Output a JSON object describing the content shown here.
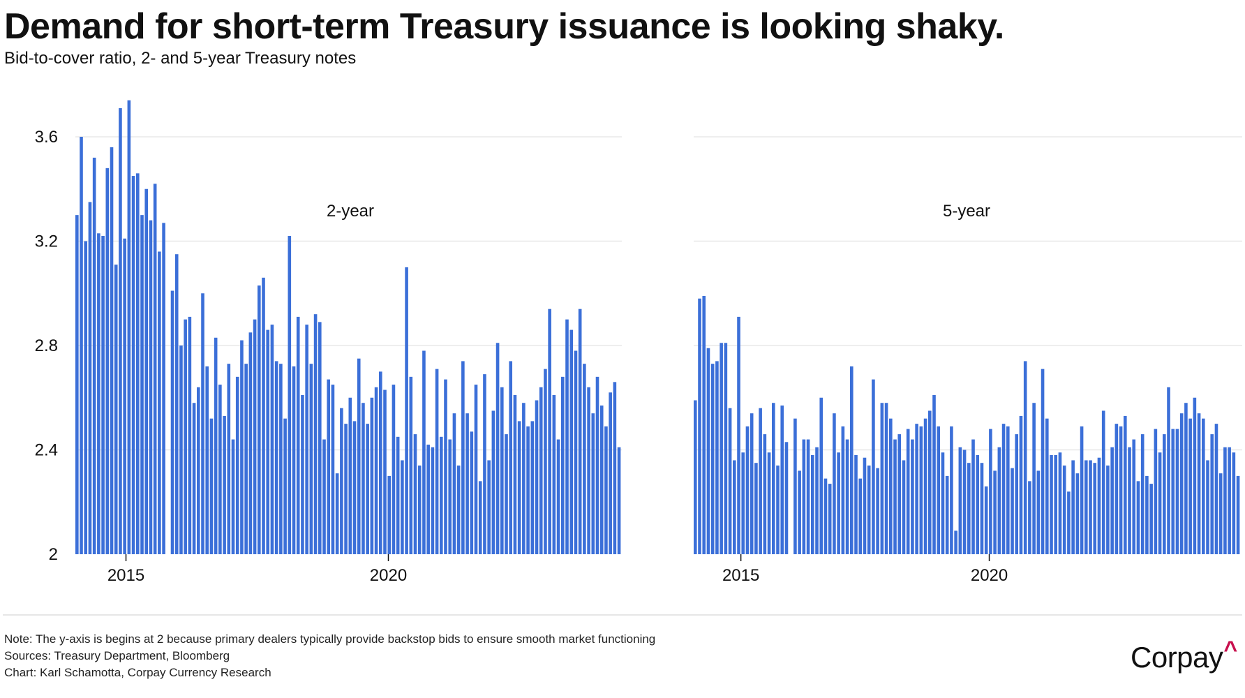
{
  "header": {
    "title": "Demand for short-term Treasury issuance is looking shaky.",
    "subtitle": "Bid-to-cover ratio, 2- and 5-year Treasury notes"
  },
  "footer": {
    "note": "Note: The y-axis is begins at 2 because primary dealers typically provide backstop bids to ensure smooth market functioning",
    "sources": "Sources: Treasury Department, Bloomberg",
    "credit": "Chart: Karl Schamotta, Corpay Currency Research"
  },
  "logo": {
    "text": "Corpay",
    "mark": "^",
    "mark_color": "#c8104e"
  },
  "colors": {
    "bar": "#3b6fd8",
    "grid": "#e8e8e8"
  },
  "chart_data": [
    {
      "type": "bar",
      "title": "2-year",
      "xlabel": "",
      "ylabel": "",
      "ylim": [
        2,
        3.75
      ],
      "yticks": [
        2,
        2.4,
        2.8,
        3.2,
        3.6
      ],
      "ytick_labels": [
        "2",
        "2.4",
        "2.8",
        "3.2",
        "3.6"
      ],
      "xticks": [
        {
          "label": "2015",
          "at_index": 11.3
        },
        {
          "label": "2020",
          "at_index": 71.8
        }
      ],
      "gap_after_index": 20,
      "grid": true,
      "values": [
        3.3,
        3.6,
        3.2,
        3.35,
        3.52,
        3.23,
        3.22,
        3.48,
        3.56,
        3.11,
        3.71,
        3.21,
        3.74,
        3.45,
        3.46,
        3.3,
        3.4,
        3.28,
        3.42,
        3.16,
        3.27,
        3.01,
        3.15,
        2.8,
        2.9,
        2.91,
        2.58,
        2.64,
        3.0,
        2.72,
        2.52,
        2.83,
        2.65,
        2.53,
        2.73,
        2.44,
        2.68,
        2.82,
        2.73,
        2.85,
        2.9,
        3.03,
        3.06,
        2.86,
        2.88,
        2.74,
        2.73,
        2.52,
        3.22,
        2.72,
        2.91,
        2.61,
        2.88,
        2.73,
        2.92,
        2.89,
        2.44,
        2.67,
        2.65,
        2.31,
        2.56,
        2.5,
        2.6,
        2.51,
        2.75,
        2.58,
        2.5,
        2.6,
        2.64,
        2.7,
        2.63,
        2.3,
        2.65,
        2.45,
        2.36,
        3.1,
        2.68,
        2.46,
        2.34,
        2.78,
        2.42,
        2.41,
        2.71,
        2.45,
        2.67,
        2.44,
        2.54,
        2.34,
        2.74,
        2.54,
        2.47,
        2.65,
        2.28,
        2.69,
        2.36,
        2.55,
        2.81,
        2.64,
        2.46,
        2.74,
        2.61,
        2.51,
        2.58,
        2.49,
        2.51,
        2.59,
        2.64,
        2.71,
        2.94,
        2.61,
        2.44,
        2.68,
        2.9,
        2.86,
        2.78,
        2.94,
        2.73,
        2.64,
        2.54,
        2.68,
        2.57,
        2.49,
        2.62,
        2.66,
        2.41
      ]
    },
    {
      "type": "bar",
      "title": "5-year",
      "xlabel": "",
      "ylabel": "",
      "ylim": [
        2,
        3.75
      ],
      "yticks": [
        2,
        2.4,
        2.8,
        3.2,
        3.6
      ],
      "xticks": [
        {
          "label": "2015",
          "at_index": 10.5
        },
        {
          "label": "2020",
          "at_index": 67.7
        }
      ],
      "gap_after_index": 21,
      "grid": true,
      "values": [
        2.59,
        2.98,
        2.99,
        2.79,
        2.73,
        2.74,
        2.81,
        2.81,
        2.56,
        2.36,
        2.91,
        2.39,
        2.49,
        2.54,
        2.35,
        2.56,
        2.46,
        2.39,
        2.58,
        2.34,
        2.57,
        2.43,
        2.52,
        2.32,
        2.44,
        2.44,
        2.38,
        2.41,
        2.6,
        2.29,
        2.27,
        2.54,
        2.39,
        2.49,
        2.44,
        2.72,
        2.38,
        2.29,
        2.37,
        2.34,
        2.67,
        2.33,
        2.58,
        2.58,
        2.52,
        2.44,
        2.46,
        2.36,
        2.48,
        2.44,
        2.5,
        2.49,
        2.52,
        2.55,
        2.61,
        2.49,
        2.39,
        2.3,
        2.49,
        2.09,
        2.41,
        2.4,
        2.35,
        2.44,
        2.38,
        2.35,
        2.26,
        2.48,
        2.32,
        2.41,
        2.5,
        2.49,
        2.33,
        2.46,
        2.53,
        2.74,
        2.28,
        2.58,
        2.32,
        2.71,
        2.52,
        2.38,
        2.38,
        2.39,
        2.34,
        2.24,
        2.36,
        2.31,
        2.49,
        2.36,
        2.36,
        2.35,
        2.37,
        2.55,
        2.34,
        2.41,
        2.5,
        2.49,
        2.53,
        2.41,
        2.44,
        2.28,
        2.46,
        2.3,
        2.27,
        2.48,
        2.39,
        2.46,
        2.64,
        2.48,
        2.48,
        2.54,
        2.58,
        2.52,
        2.6,
        2.54,
        2.52,
        2.36,
        2.46,
        2.5,
        2.31,
        2.41,
        2.41,
        2.39,
        2.3
      ]
    }
  ]
}
